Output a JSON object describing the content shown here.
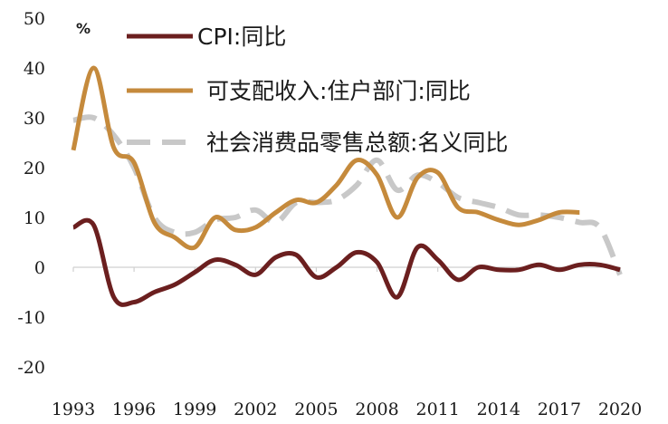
{
  "chart_data": {
    "type": "line",
    "title": "",
    "xlabel": "",
    "ylabel": "%",
    "xlim": [
      1993,
      2020
    ],
    "ylim": [
      -20,
      50
    ],
    "x_ticks": [
      "1993",
      "1996",
      "1999",
      "2002",
      "2005",
      "2008",
      "2011",
      "2014",
      "2017",
      "2020"
    ],
    "y_ticks": [
      "50",
      "40",
      "30",
      "20",
      "10",
      "0",
      "-10",
      "-20"
    ],
    "legend_position": "top-right",
    "series": [
      {
        "name": "CPI:同比",
        "color": "#6b1f1f",
        "dash": "solid",
        "x": [
          1993,
          1994,
          1995,
          1996,
          1997,
          1998,
          1999,
          2000,
          2001,
          2002,
          2003,
          2004,
          2005,
          2006,
          2007,
          2008,
          2009,
          2010,
          2011,
          2012,
          2013,
          2014,
          2015,
          2016,
          2017,
          2018,
          2019,
          2020
        ],
        "values": [
          8,
          8.5,
          -6,
          -7,
          -5,
          -3.5,
          -1,
          1.5,
          0.5,
          -1.5,
          2,
          2.5,
          -2,
          0,
          3,
          1,
          -6,
          4,
          1.5,
          -2.5,
          0,
          -0.5,
          -0.5,
          0.5,
          -0.5,
          0.5,
          0.5,
          -0.5
        ]
      },
      {
        "name": "可支配收入:住户部门:同比",
        "color": "#c58a3c",
        "dash": "solid",
        "x": [
          1993,
          1994,
          1995,
          1996,
          1997,
          1998,
          1999,
          2000,
          2001,
          2002,
          2003,
          2004,
          2005,
          2006,
          2007,
          2008,
          2009,
          2010,
          2011,
          2012,
          2013,
          2014,
          2015,
          2016,
          2017,
          2018
        ],
        "values": [
          23.5,
          40,
          24,
          21,
          9,
          6,
          4,
          10,
          7.5,
          8,
          11,
          13.5,
          13,
          16.5,
          21.5,
          18.5,
          10,
          18,
          19,
          12,
          11,
          9.5,
          8.5,
          9.5,
          11,
          11
        ]
      },
      {
        "name": "社会消费品零售总额:名义同比",
        "color": "#c8c8c8",
        "dash": "dashed",
        "x": [
          1993,
          1994,
          1995,
          1996,
          1997,
          1998,
          1999,
          2000,
          2001,
          2002,
          2003,
          2004,
          2005,
          2006,
          2007,
          2008,
          2009,
          2010,
          2011,
          2012,
          2013,
          2014,
          2015,
          2016,
          2017,
          2018,
          2019,
          2020
        ],
        "values": [
          29.5,
          30,
          26.5,
          20,
          10,
          7,
          7,
          9.5,
          10,
          11.5,
          9,
          13,
          13,
          13.5,
          16.5,
          21.5,
          15.5,
          18.5,
          17,
          14,
          13,
          12,
          10.5,
          10.5,
          10,
          9,
          8,
          -1.5
        ]
      }
    ]
  }
}
